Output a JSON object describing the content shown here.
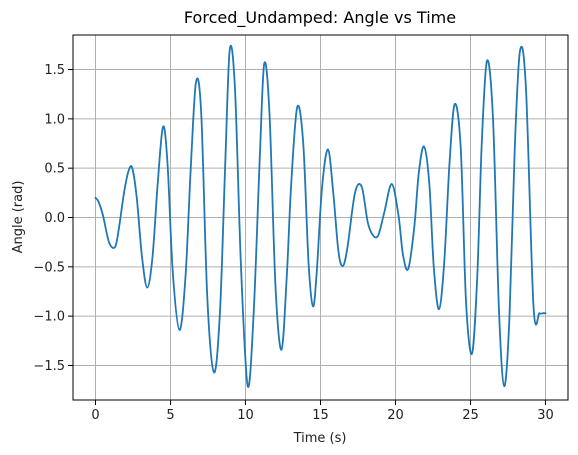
{
  "chart_data": {
    "type": "line",
    "title": "Forced_Undamped: Angle vs Time",
    "xlabel": "Time (s)",
    "ylabel": "Angle (rad)",
    "xlim": [
      -1.5,
      31.5
    ],
    "ylim": [
      -1.85,
      1.85
    ],
    "x_ticks": [
      0,
      5,
      10,
      15,
      20,
      25,
      30
    ],
    "x_tick_labels": [
      "0",
      "5",
      "10",
      "15",
      "20",
      "25",
      "30"
    ],
    "y_ticks": [
      -1.5,
      -1.0,
      -0.5,
      0.0,
      0.5,
      1.0,
      1.5
    ],
    "y_tick_labels": [
      "−1.5",
      "−1.0",
      "−0.5",
      "0.0",
      "0.5",
      "1.0",
      "1.5"
    ],
    "grid": true,
    "line_color": "#1f77b4",
    "series": [
      {
        "x": [
          0,
          0.2,
          0.5,
          0.9,
          1.3,
          1.55,
          1.9,
          2.2,
          2.45,
          2.75,
          3.1,
          3.45,
          3.8,
          4.15,
          4.5,
          4.8,
          5.15,
          5.6,
          6.0,
          6.35,
          6.7,
          7.05,
          7.45,
          7.9,
          8.3,
          8.65,
          8.95,
          9.3,
          9.7,
          10.15,
          10.55,
          10.95,
          11.25,
          11.6,
          12.0,
          12.4,
          12.75,
          13.05,
          13.45,
          13.85,
          14.2,
          14.5,
          14.75,
          15.1,
          15.5,
          15.85,
          16.2,
          16.5,
          16.8,
          17.3,
          17.75,
          18.15,
          18.5,
          18.85,
          19.25,
          19.75,
          20.2,
          20.5,
          20.85,
          21.25,
          21.55,
          21.9,
          22.25,
          22.55,
          22.9,
          23.25,
          23.6,
          23.95,
          24.35,
          24.7,
          25.1,
          25.45,
          25.75,
          26.1,
          26.5,
          26.9,
          27.25,
          27.6,
          27.95,
          28.3,
          28.7,
          29.2,
          29.6,
          29.85,
          30
        ],
        "y": [
          0.2,
          0.16,
          0.02,
          -0.25,
          -0.3,
          -0.12,
          0.25,
          0.47,
          0.5,
          0.2,
          -0.4,
          -0.71,
          -0.4,
          0.35,
          0.92,
          0.55,
          -0.55,
          -1.14,
          -0.6,
          0.5,
          1.37,
          1.05,
          -0.8,
          -1.57,
          -0.95,
          0.55,
          1.7,
          1.3,
          -0.5,
          -1.71,
          -0.95,
          0.6,
          1.56,
          1.05,
          -0.7,
          -1.34,
          -0.6,
          0.35,
          1.12,
          0.75,
          -0.45,
          -0.9,
          -0.55,
          0.3,
          0.69,
          0.25,
          -0.35,
          -0.49,
          -0.3,
          0.25,
          0.31,
          -0.05,
          -0.18,
          -0.18,
          0.05,
          0.34,
          0.02,
          -0.38,
          -0.52,
          -0.1,
          0.45,
          0.72,
          0.35,
          -0.5,
          -0.93,
          -0.45,
          0.55,
          1.15,
          0.7,
          -0.85,
          -1.38,
          -0.6,
          0.75,
          1.59,
          1.0,
          -0.95,
          -1.71,
          -1.0,
          0.7,
          1.69,
          1.3,
          -0.9,
          -0.97,
          -0.97,
          -0.97
        ],
        "smooth": true
      }
    ]
  }
}
